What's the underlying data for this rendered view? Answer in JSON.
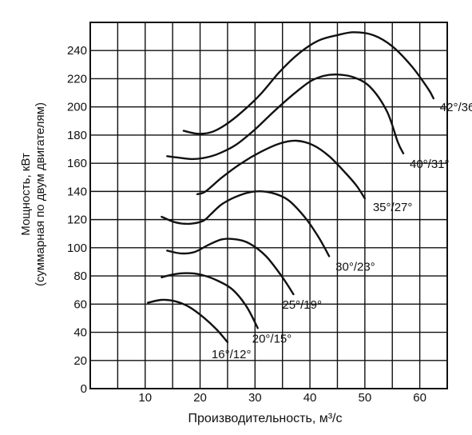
{
  "chart_data": {
    "type": "line",
    "title": "",
    "xlabel": "Производительность, м³/с",
    "ylabel_line1": "Мощность, кВт",
    "ylabel_line2": "(суммарная по двум двигателям)",
    "xlim": [
      0,
      65
    ],
    "ylim": [
      0,
      260
    ],
    "x_ticks": [
      10,
      20,
      30,
      40,
      50,
      60
    ],
    "y_ticks": [
      0,
      20,
      40,
      60,
      80,
      100,
      120,
      140,
      160,
      180,
      200,
      220,
      240
    ],
    "grid": true,
    "colors": {
      "line": "#111111",
      "grid": "#111111",
      "background": "#ffffff"
    },
    "series": [
      {
        "name": "16°/12°",
        "x": [
          10.5,
          13,
          15.5,
          18,
          20.5,
          23,
          25
        ],
        "y": [
          61,
          63,
          62,
          58,
          51,
          42,
          33
        ]
      },
      {
        "name": "20°/15°",
        "x": [
          13,
          15,
          17.5,
          20,
          23,
          26,
          28.5,
          30.5
        ],
        "y": [
          79,
          81,
          82,
          81,
          77,
          70,
          58,
          43
        ]
      },
      {
        "name": "25°/19°",
        "x": [
          14,
          16.5,
          19,
          21.5,
          24,
          26.5,
          29,
          32,
          35,
          37
        ],
        "y": [
          98,
          96,
          97,
          102,
          106,
          106,
          103,
          94,
          79,
          67
        ]
      },
      {
        "name": "30°/23°",
        "x": [
          13,
          15.5,
          18,
          20.5,
          22,
          24,
          27,
          30,
          33,
          36,
          39,
          41.5,
          43.5
        ],
        "y": [
          122,
          118,
          117,
          119,
          124,
          131,
          137,
          140,
          139,
          134,
          122,
          108,
          94
        ]
      },
      {
        "name": "35°/27°",
        "x": [
          19.5,
          21,
          24,
          27.5,
          31,
          34.5,
          37.5,
          40.5,
          43.5,
          46.5,
          48.5,
          50
        ],
        "y": [
          138,
          140,
          150,
          160,
          168,
          174,
          176,
          173,
          165,
          153,
          144,
          135
        ]
      },
      {
        "name": "40°/31°",
        "x": [
          14,
          16,
          18.5,
          21,
          23.5,
          26.5,
          30,
          33.5,
          37,
          40,
          42.5,
          45,
          48,
          51,
          54,
          56,
          57
        ],
        "y": [
          165,
          164,
          163,
          164,
          167,
          173,
          184,
          197,
          209,
          218,
          222,
          223,
          221,
          214,
          197,
          175,
          167
        ]
      },
      {
        "name": "42°/36°",
        "x": [
          17,
          19.5,
          22,
          24.5,
          27.5,
          31,
          34.5,
          38,
          41.5,
          45,
          48,
          51.5,
          55,
          58.5,
          61.5,
          62.5
        ],
        "y": [
          183,
          181,
          182,
          187,
          196,
          209,
          225,
          238,
          247,
          251,
          253,
          251,
          243,
          229,
          213,
          206
        ]
      }
    ]
  }
}
